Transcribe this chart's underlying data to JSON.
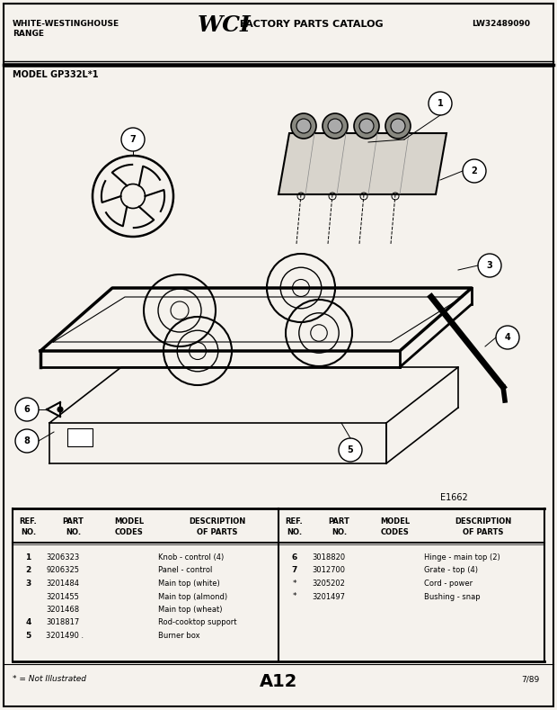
{
  "title_left1": "WHITE-WESTINGHOUSE",
  "title_left2": "RANGE",
  "title_center_wci": "WCI",
  "title_center_rest": " FACTORY PARTS CATALOG",
  "title_right": "LW32489090",
  "model_label": "MODEL GP332L*1",
  "diagram_code": "E1662",
  "page_code": "A12",
  "date_code": "7/89",
  "footnote": "* = Not Illustrated",
  "bg_color": "#f0ece4",
  "border_color": "#000000",
  "parts_left": [
    [
      "1",
      "3206323",
      "",
      "Knob - control (4)"
    ],
    [
      "2",
      "9206325",
      "",
      "Panel - control"
    ],
    [
      "3",
      "3201484",
      "",
      "Main top (white)"
    ],
    [
      "",
      "3201455",
      "",
      "Main top (almond)"
    ],
    [
      "",
      "3201468",
      "",
      "Main top (wheat)"
    ],
    [
      "4",
      "3018817",
      "",
      "Rod-cooktop support"
    ],
    [
      "5",
      "3201490 .",
      "",
      "Burner box"
    ]
  ],
  "parts_right": [
    [
      "6",
      "3018820",
      "",
      "Hinge - main top (2)"
    ],
    [
      "7",
      "3012700",
      "",
      "Grate - top (4)"
    ],
    [
      "*",
      "3205202",
      "",
      "Cord - power"
    ],
    [
      "*",
      "3201497",
      "",
      "Bushing - snap"
    ]
  ]
}
